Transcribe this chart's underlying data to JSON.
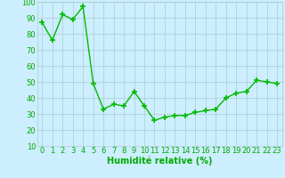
{
  "x": [
    0,
    1,
    2,
    3,
    4,
    5,
    6,
    7,
    8,
    9,
    10,
    11,
    12,
    13,
    14,
    15,
    16,
    17,
    18,
    19,
    20,
    21,
    22,
    23
  ],
  "y": [
    87,
    76,
    92,
    89,
    97,
    49,
    33,
    36,
    35,
    44,
    35,
    26,
    28,
    29,
    29,
    31,
    32,
    33,
    40,
    43,
    44,
    51,
    50,
    49
  ],
  "line_color": "#00bb00",
  "marker": "+",
  "marker_size": 4,
  "marker_linewidth": 1.2,
  "line_width": 1.0,
  "bg_color": "#cceeff",
  "grid_color": "#aacccc",
  "xlabel": "Humidité relative (%)",
  "xlabel_color": "#00aa00",
  "xlabel_fontsize": 7,
  "tick_color": "#00aa00",
  "tick_fontsize": 6,
  "ylim": [
    10,
    100
  ],
  "yticks": [
    10,
    20,
    30,
    40,
    50,
    60,
    70,
    80,
    90,
    100
  ],
  "xlim_min": -0.5,
  "xlim_max": 23.5,
  "xticks": [
    0,
    1,
    2,
    3,
    4,
    5,
    6,
    7,
    8,
    9,
    10,
    11,
    12,
    13,
    14,
    15,
    16,
    17,
    18,
    19,
    20,
    21,
    22,
    23
  ]
}
